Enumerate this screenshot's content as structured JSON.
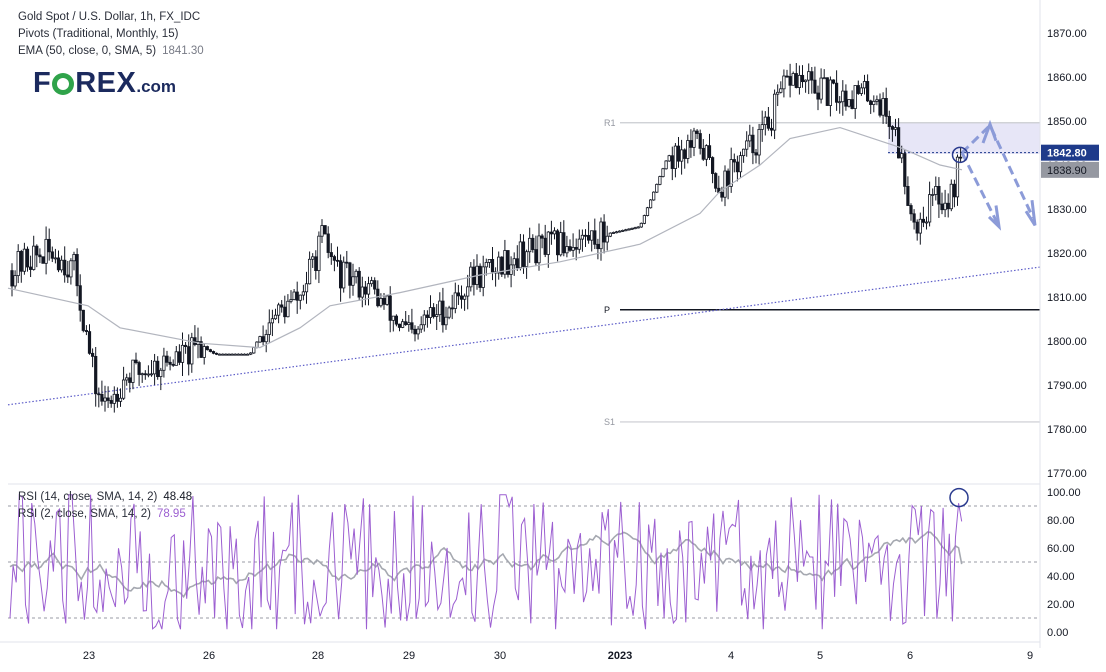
{
  "legend": {
    "title": "Gold Spot / U.S. Dollar, 1h, FX_IDC",
    "pivots": "Pivots (Traditional, Monthly, 15)",
    "ema": "EMA (50, close, 0, SMA, 5)",
    "ema_value": "1841.30"
  },
  "logo": {
    "part1": "F",
    "part2": "REX",
    "part3": ".com"
  },
  "price_labels": {
    "current": "1842.80",
    "ema": "1838.90"
  },
  "pivot_labels": {
    "r1": "R1",
    "p": "P",
    "s1": "S1"
  },
  "rsi_legend": {
    "rsi14": "RSI (14, close, SMA, 14, 2)",
    "rsi14_value": "48.48",
    "rsi2": "RSI (2, close, SMA, 14, 2)",
    "rsi2_value": "78.95"
  },
  "colors": {
    "candle": "#131722",
    "ema": "#b2b5be",
    "trendline": "#5c5cc8",
    "pivot": "#c9cbd1",
    "pivot_p": "#131722",
    "zone": "#e3e2f6",
    "arrow": "#8c9bd8",
    "circle": "#2a3b8f",
    "rsi2": "#9c5fd1",
    "rsi14": "#a5a8b0",
    "current_bg": "#1e3a8a",
    "ema_bg": "#9598a1"
  },
  "chart_data": [
    {
      "type": "candlestick",
      "title": "Gold Spot / U.S. Dollar, 1h, FX_IDC",
      "x_ticks": [
        "23",
        "26",
        "28",
        "29",
        "30",
        "2023",
        "4",
        "5",
        "6",
        "9"
      ],
      "y_ticks": [
        1770,
        1780,
        1790,
        1800,
        1810,
        1820,
        1830,
        1840,
        1850,
        1860,
        1870
      ],
      "ylim": [
        1767,
        1877
      ],
      "pivots": {
        "R1": 1849.6,
        "P": 1807.1,
        "S1": 1781.6
      },
      "current_price": 1842.8,
      "ema_last": 1838.9,
      "resistance_zone": [
        1842.5,
        1849.6
      ],
      "rising_trendline": [
        {
          "x": "start",
          "y": 1785
        },
        {
          "x": "end",
          "y": 1817
        }
      ],
      "ema_path": [
        [
          "Dec 22",
          1812
        ],
        [
          "Dec 23",
          1808
        ],
        [
          "Dec 23 late",
          1803
        ],
        [
          "Dec 26",
          1799.5
        ],
        [
          "Dec 27",
          1798.5
        ],
        [
          "Dec 28",
          1803
        ],
        [
          "Dec 28 late",
          1808
        ],
        [
          "Dec 29",
          1811
        ],
        [
          "Dec 30",
          1815
        ],
        [
          "Jan 2",
          1818
        ],
        [
          "Jan 3",
          1822
        ],
        [
          "Jan 3 late",
          1829
        ],
        [
          "Jan 4",
          1834
        ],
        [
          "Jan 4 late",
          1840
        ],
        [
          "Jan 5",
          1846
        ],
        [
          "Jan 5 late",
          1848.5
        ],
        [
          "Jan 6",
          1844
        ],
        [
          "Jan 6 late",
          1840
        ],
        [
          "Jan 6 end",
          1838.9
        ]
      ],
      "price_path": [
        [
          "Dec 22",
          1816
        ],
        [
          "Dec 22 mid",
          1819
        ],
        [
          "Dec 22 late",
          1820
        ],
        [
          "Dec 23 early",
          1816
        ],
        [
          "Dec 23",
          1790
        ],
        [
          "Dec 23 low",
          1785
        ],
        [
          "Dec 23 late",
          1792
        ],
        [
          "Dec 26",
          1797
        ],
        [
          "Dec 26 mid",
          1799
        ],
        [
          "Dec 26 late",
          1797
        ],
        [
          "Dec 27",
          1797
        ],
        [
          "Dec 27 mid",
          1805
        ],
        [
          "Dec 27 late",
          1810
        ],
        [
          "Dec 28",
          1823
        ],
        [
          "Dec 28 mid",
          1815
        ],
        [
          "Dec 28 late",
          1812
        ],
        [
          "Dec 29",
          1805
        ],
        [
          "Dec 29 low",
          1800
        ],
        [
          "Dec 29 late",
          1805
        ],
        [
          "Dec 30",
          1808
        ],
        [
          "Dec 30 mid",
          1814
        ],
        [
          "Dec 30 late",
          1820
        ],
        [
          "Jan 2",
          1824
        ],
        [
          "Jan 3",
          1826
        ],
        [
          "Jan 3 mid",
          1842
        ],
        [
          "Jan 3 late",
          1845
        ],
        [
          "Jan 4",
          1835
        ],
        [
          "Jan 4 mid",
          1840
        ],
        [
          "Jan 4 late",
          1848
        ],
        [
          "Jan 5",
          1860
        ],
        [
          "Jan 5 mid",
          1856
        ],
        [
          "Jan 5 late",
          1856
        ],
        [
          "Jan 6",
          1848
        ],
        [
          "Jan 6 mid",
          1826
        ],
        [
          "Jan 6 low",
          1833
        ],
        [
          "Jan 6 late",
          1832
        ],
        [
          "Jan 6 end",
          1842.8
        ]
      ],
      "projection": [
        {
          "from": 1842.8,
          "to": 1849,
          "then": 1828,
          "label": "dashed path"
        },
        {
          "from": 1842.8,
          "to": 1828,
          "label": "dashed arrow"
        }
      ]
    },
    {
      "type": "line",
      "title": "RSI",
      "y_ticks": [
        0,
        20,
        40,
        60,
        80,
        100
      ],
      "ylim": [
        -2,
        102
      ],
      "bands": [
        10,
        50,
        90
      ],
      "series": [
        {
          "name": "RSI (14, close, SMA, 14, 2)",
          "last": 48.48
        },
        {
          "name": "RSI (2, close, SMA, 14, 2)",
          "last": 78.95
        }
      ]
    }
  ]
}
